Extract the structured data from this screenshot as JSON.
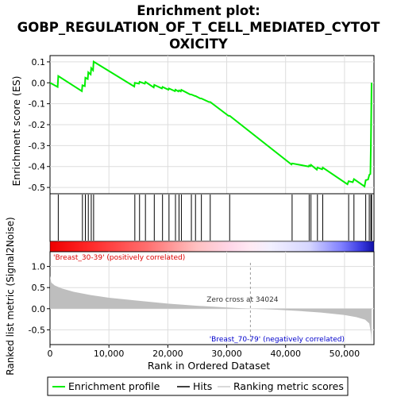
{
  "chart_data": {
    "type": "line",
    "title_lines": [
      "Enrichment plot:",
      "GOBP_REGULATION_OF_T_CELL_MEDIATED_CYTOT",
      "OXICITY"
    ],
    "xlabel": "Rank in Ordered Dataset",
    "xlim": [
      0,
      55000
    ],
    "x_ticks": [
      0,
      10000,
      20000,
      30000,
      40000,
      50000
    ],
    "x_tick_labels": [
      "0",
      "10,000",
      "20,000",
      "30,000",
      "40,000",
      "50,000"
    ],
    "es_panel": {
      "ylabel": "Enrichment score (ES)",
      "ylim": [
        -0.53,
        0.13
      ],
      "y_ticks": [
        0.1,
        0.0,
        -0.1,
        -0.2,
        -0.3,
        -0.4,
        -0.5
      ],
      "y_tick_labels": [
        "0.1",
        "0.0",
        "-0.1",
        "-0.2",
        "-0.3",
        "-0.4",
        "-0.5"
      ],
      "grid": true,
      "series_name": "Enrichment profile",
      "series_color": "#00ee00",
      "x": [
        0,
        1300,
        1400,
        5400,
        5500,
        5900,
        6000,
        6400,
        6500,
        6900,
        7000,
        7300,
        7400,
        14300,
        14400,
        15100,
        15200,
        16100,
        16200,
        17600,
        17700,
        19000,
        19100,
        20100,
        20200,
        21200,
        21300,
        21800,
        21900,
        22200,
        22300,
        23800,
        24000,
        24600,
        24700,
        25500,
        25700,
        27000,
        27200,
        30300,
        30500,
        41000,
        41100,
        43900,
        44000,
        44200,
        44300,
        45300,
        45400,
        46200,
        46300,
        50500,
        50700,
        51400,
        51600,
        53400,
        53600,
        54000,
        54200,
        54400,
        54480,
        54550,
        54600
      ],
      "y": [
        0.0,
        -0.02,
        0.032,
        -0.04,
        -0.012,
        -0.016,
        0.024,
        0.018,
        0.05,
        0.04,
        0.07,
        0.06,
        0.101,
        -0.018,
        0.0,
        -0.004,
        0.005,
        -0.004,
        0.004,
        -0.022,
        -0.01,
        -0.027,
        -0.02,
        -0.033,
        -0.027,
        -0.04,
        -0.033,
        -0.041,
        -0.036,
        -0.041,
        -0.034,
        -0.056,
        -0.056,
        -0.063,
        -0.063,
        -0.075,
        -0.075,
        -0.092,
        -0.092,
        -0.158,
        -0.158,
        -0.39,
        -0.385,
        -0.4,
        -0.395,
        -0.398,
        -0.392,
        -0.415,
        -0.405,
        -0.413,
        -0.405,
        -0.485,
        -0.47,
        -0.475,
        -0.46,
        -0.495,
        -0.465,
        -0.462,
        -0.44,
        -0.435,
        -0.3,
        -0.1,
        0.0
      ]
    },
    "hits": {
      "series_name": "Hits",
      "x": [
        1400,
        5500,
        6000,
        6500,
        7000,
        7400,
        14400,
        15200,
        16200,
        17700,
        19100,
        20200,
        21300,
        21900,
        22300,
        24000,
        24700,
        25700,
        27200,
        30500,
        41100,
        44000,
        44300,
        45400,
        46300,
        50700,
        51600,
        53600,
        54200,
        54480,
        54550,
        54600
      ]
    },
    "ranked_metric": {
      "ylabel": "Ranked list metric (Signal2Noise)",
      "ylim": [
        -0.85,
        1.35
      ],
      "y_ticks": [
        1.0,
        0.5,
        0.0,
        -0.5
      ],
      "y_tick_labels": [
        "1.0",
        "0.5",
        "0.0",
        "-0.5"
      ],
      "series_name": "Ranking metric scores",
      "x": [
        0,
        200,
        800,
        2000,
        4000,
        7000,
        10000,
        15000,
        20000,
        25000,
        30000,
        34024,
        38000,
        42000,
        46000,
        50000,
        52000,
        53500,
        54200,
        54500,
        54600
      ],
      "y": [
        0.78,
        0.62,
        0.55,
        0.48,
        0.4,
        0.32,
        0.26,
        0.19,
        0.12,
        0.07,
        0.03,
        0.0,
        -0.02,
        -0.05,
        -0.09,
        -0.15,
        -0.2,
        -0.26,
        -0.35,
        -0.6,
        -0.85
      ],
      "zero_cross_label": "Zero cross at 34024",
      "zero_cross": 34024,
      "pos_label": "'Breast_30-39' (positively correlated)",
      "neg_label": "'Breast_70-79' (negatively correlated)",
      "pos_color": "#dd0000",
      "neg_color": "#0000cc",
      "fill_color": "#bebebe"
    },
    "legend": {
      "placement": "bottom",
      "items": [
        {
          "label": "Enrichment profile",
          "color": "#00ee00"
        },
        {
          "label": "Hits",
          "color": "#000000"
        },
        {
          "label": "Ranking metric scores",
          "color": "#cccccc"
        }
      ]
    }
  }
}
